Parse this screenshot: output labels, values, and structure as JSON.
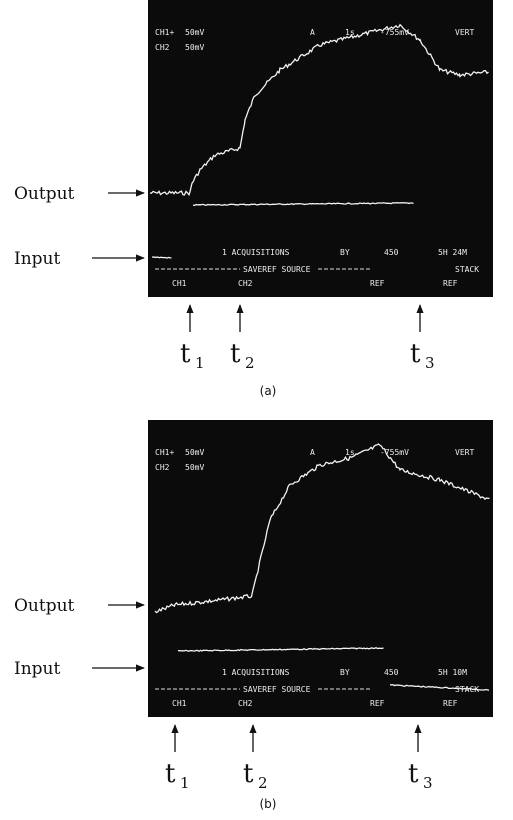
{
  "panels": [
    {
      "caption": "(a)",
      "output_label": "Output",
      "input_label": "Input",
      "screen": {
        "ch1": "CH1+",
        "ch1_scale": "50mV",
        "ch2": "CH2",
        "ch2_scale": "50mV",
        "trigger": "A",
        "time": "1s",
        "level": "-755mV",
        "mode": "VERT",
        "acquisitions": "1 ACQUISITIONS",
        "by": "BY",
        "count": "450",
        "stamp": "5H 24M",
        "saveref": "SAVEREF SOURCE",
        "stack": "STACK",
        "softkeys": [
          "CH1",
          "CH2",
          "REF",
          "REF"
        ]
      },
      "markers": [
        {
          "base": "t",
          "sub": "1"
        },
        {
          "base": "t",
          "sub": "2"
        },
        {
          "base": "t",
          "sub": "3"
        }
      ]
    },
    {
      "caption": "(b)",
      "output_label": "Output",
      "input_label": "Input",
      "screen": {
        "ch1": "CH1+",
        "ch1_scale": "50mV",
        "ch2": "CH2",
        "ch2_scale": "50mV",
        "trigger": "A",
        "time": "1s",
        "level": "-755mV",
        "mode": "VERT",
        "acquisitions": "1 ACQUISITIONS",
        "by": "BY",
        "count": "450",
        "stamp": "5H 10M",
        "saveref": "SAVEREF SOURCE",
        "stack": "STACK",
        "softkeys": [
          "CH1",
          "CH2",
          "REF",
          "REF"
        ]
      },
      "markers": [
        {
          "base": "t",
          "sub": "1"
        },
        {
          "base": "t",
          "sub": "2"
        },
        {
          "base": "t",
          "sub": "3"
        }
      ]
    }
  ]
}
